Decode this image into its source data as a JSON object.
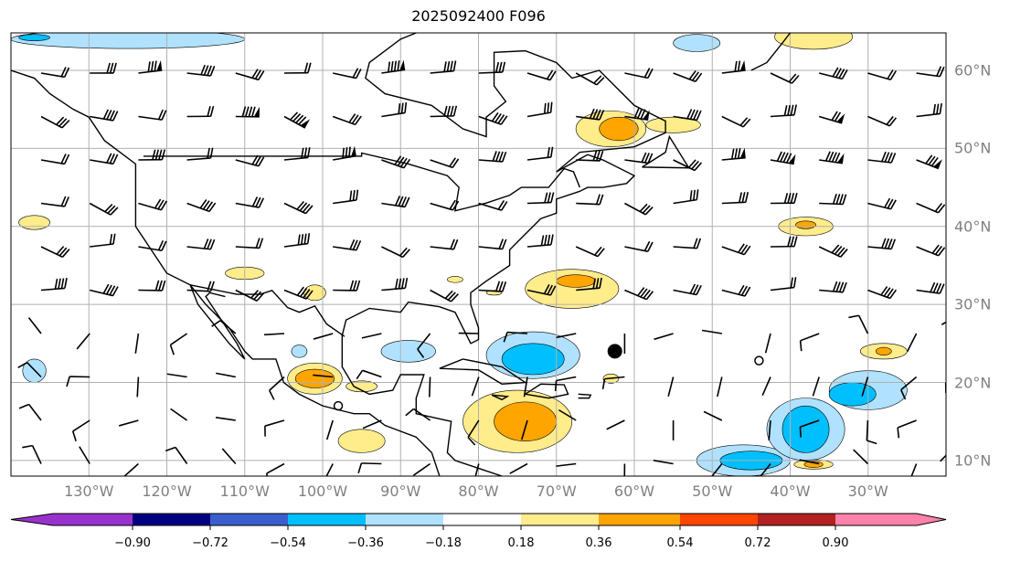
{
  "title": "2025092400 F096",
  "lon_labels": [
    "130°W",
    "120°W",
    "110°W",
    "100°W",
    "90°W",
    "80°W",
    "70°W",
    "60°W",
    "50°W",
    "40°W",
    "30°W"
  ],
  "lon_values": [
    -130,
    -120,
    -110,
    -100,
    -90,
    -80,
    -70,
    -60,
    -50,
    -40,
    -30
  ],
  "lat_labels": [
    "60°N",
    "50°N",
    "40°N",
    "30°N",
    "20°N",
    "10°N"
  ],
  "lat_values": [
    60,
    50,
    40,
    30,
    20,
    10
  ],
  "extent": {
    "lon": [
      -140,
      -20
    ],
    "lat": [
      8,
      64.8
    ]
  },
  "colorbar": {
    "colors": [
      "#9932cc",
      "#000080",
      "#3a5fcd",
      "#00bfff",
      "#b0e2ff",
      "#ffffff",
      "#ffec8b",
      "#ffa500",
      "#ff4500",
      "#b22222",
      "#ff82ab"
    ],
    "tick_labels": [
      "−0.90",
      "−0.72",
      "−0.54",
      "−0.36",
      "−0.18",
      "0.18",
      "0.36",
      "0.54",
      "0.72",
      "0.90"
    ]
  },
  "anomaly_regions": [
    {
      "lon": -125,
      "lat": 64,
      "rlon": 15,
      "rlat": 1.2,
      "color": "#b0e2ff"
    },
    {
      "lon": -137,
      "lat": 64.2,
      "rlon": 2,
      "rlat": 0.4,
      "color": "#00bfff"
    },
    {
      "lon": -52,
      "lat": 63.5,
      "rlon": 3,
      "rlat": 1.1,
      "color": "#b0e2ff"
    },
    {
      "lon": -37,
      "lat": 64.3,
      "rlon": 5,
      "rlat": 1.6,
      "color": "#ffec8b"
    },
    {
      "lon": -63,
      "lat": 52.5,
      "rlon": 4.5,
      "rlat": 2.3,
      "color": "#ffec8b"
    },
    {
      "lon": -62,
      "lat": 52.5,
      "rlon": 2.5,
      "rlat": 1.5,
      "color": "#ffa500"
    },
    {
      "lon": -55,
      "lat": 53,
      "rlon": 3.5,
      "rlat": 1,
      "color": "#ffec8b"
    },
    {
      "lon": -137,
      "lat": 40.5,
      "rlon": 2,
      "rlat": 0.9,
      "color": "#ffec8b"
    },
    {
      "lon": -110,
      "lat": 34,
      "rlon": 2.5,
      "rlat": 0.8,
      "color": "#ffec8b"
    },
    {
      "lon": -101,
      "lat": 31.5,
      "rlon": 1.4,
      "rlat": 1,
      "color": "#ffec8b"
    },
    {
      "lon": -83,
      "lat": 33.2,
      "rlon": 1,
      "rlat": 0.4,
      "color": "#ffec8b"
    },
    {
      "lon": -78,
      "lat": 31.5,
      "rlon": 1,
      "rlat": 0.3,
      "color": "#ffec8b"
    },
    {
      "lon": -68,
      "lat": 32,
      "rlon": 6,
      "rlat": 2.5,
      "color": "#ffec8b"
    },
    {
      "lon": -67.5,
      "lat": 33,
      "rlon": 2.5,
      "rlat": 0.8,
      "color": "#ffa500"
    },
    {
      "lon": -38,
      "lat": 40,
      "rlon": 3.5,
      "rlat": 1.2,
      "color": "#ffec8b"
    },
    {
      "lon": -38,
      "lat": 40.2,
      "rlon": 1.3,
      "rlat": 0.5,
      "color": "#ffa500"
    },
    {
      "lon": -89,
      "lat": 24,
      "rlon": 3.5,
      "rlat": 1.4,
      "color": "#b0e2ff"
    },
    {
      "lon": -73,
      "lat": 23.5,
      "rlon": 6,
      "rlat": 3,
      "color": "#b0e2ff"
    },
    {
      "lon": -73,
      "lat": 23,
      "rlon": 4,
      "rlat": 2,
      "color": "#00bfff"
    },
    {
      "lon": -103,
      "lat": 24,
      "rlon": 1,
      "rlat": 0.8,
      "color": "#b0e2ff"
    },
    {
      "lon": -137,
      "lat": 21.5,
      "rlon": 1.5,
      "rlat": 1.5,
      "color": "#b0e2ff"
    },
    {
      "lon": -101,
      "lat": 20.5,
      "rlon": 3.5,
      "rlat": 2,
      "color": "#ffec8b"
    },
    {
      "lon": -101,
      "lat": 20.5,
      "rlon": 2.5,
      "rlat": 1.2,
      "color": "#ffa500"
    },
    {
      "lon": -95,
      "lat": 19.5,
      "rlon": 2,
      "rlat": 0.7,
      "color": "#ffec8b"
    },
    {
      "lon": -75,
      "lat": 15,
      "rlon": 7,
      "rlat": 4,
      "color": "#ffec8b"
    },
    {
      "lon": -74,
      "lat": 15,
      "rlon": 4,
      "rlat": 2.5,
      "color": "#ffa500"
    },
    {
      "lon": -95,
      "lat": 12.5,
      "rlon": 3,
      "rlat": 1.5,
      "color": "#ffec8b"
    },
    {
      "lon": -28,
      "lat": 24,
      "rlon": 3,
      "rlat": 1,
      "color": "#ffec8b"
    },
    {
      "lon": -28,
      "lat": 24,
      "rlon": 1,
      "rlat": 0.5,
      "color": "#ffa500"
    },
    {
      "lon": -63,
      "lat": 20.5,
      "rlon": 1,
      "rlat": 0.6,
      "color": "#ffec8b"
    },
    {
      "lon": -46,
      "lat": 10,
      "rlon": 6,
      "rlat": 2,
      "color": "#b0e2ff"
    },
    {
      "lon": -38,
      "lat": 14,
      "rlon": 5,
      "rlat": 4,
      "color": "#b0e2ff"
    },
    {
      "lon": -30,
      "lat": 19,
      "rlon": 5,
      "rlat": 2.5,
      "color": "#b0e2ff"
    },
    {
      "lon": -45,
      "lat": 10,
      "rlon": 4,
      "rlat": 1.2,
      "color": "#00bfff"
    },
    {
      "lon": -38,
      "lat": 14,
      "rlon": 3,
      "rlat": 3,
      "color": "#00bfff"
    },
    {
      "lon": -32,
      "lat": 18.5,
      "rlon": 3,
      "rlat": 1.5,
      "color": "#00bfff"
    },
    {
      "lon": -37,
      "lat": 9.5,
      "rlon": 2.5,
      "rlat": 0.6,
      "color": "#ffec8b"
    },
    {
      "lon": -37,
      "lat": 9.5,
      "rlon": 1.2,
      "rlat": 0.4,
      "color": "#ffa500"
    }
  ],
  "markers": [
    {
      "lon": -62.5,
      "lat": 24,
      "type": "filled-large"
    },
    {
      "lon": -44,
      "lat": 22.8,
      "type": "open"
    },
    {
      "lon": -98,
      "lat": 17,
      "type": "open"
    }
  ]
}
